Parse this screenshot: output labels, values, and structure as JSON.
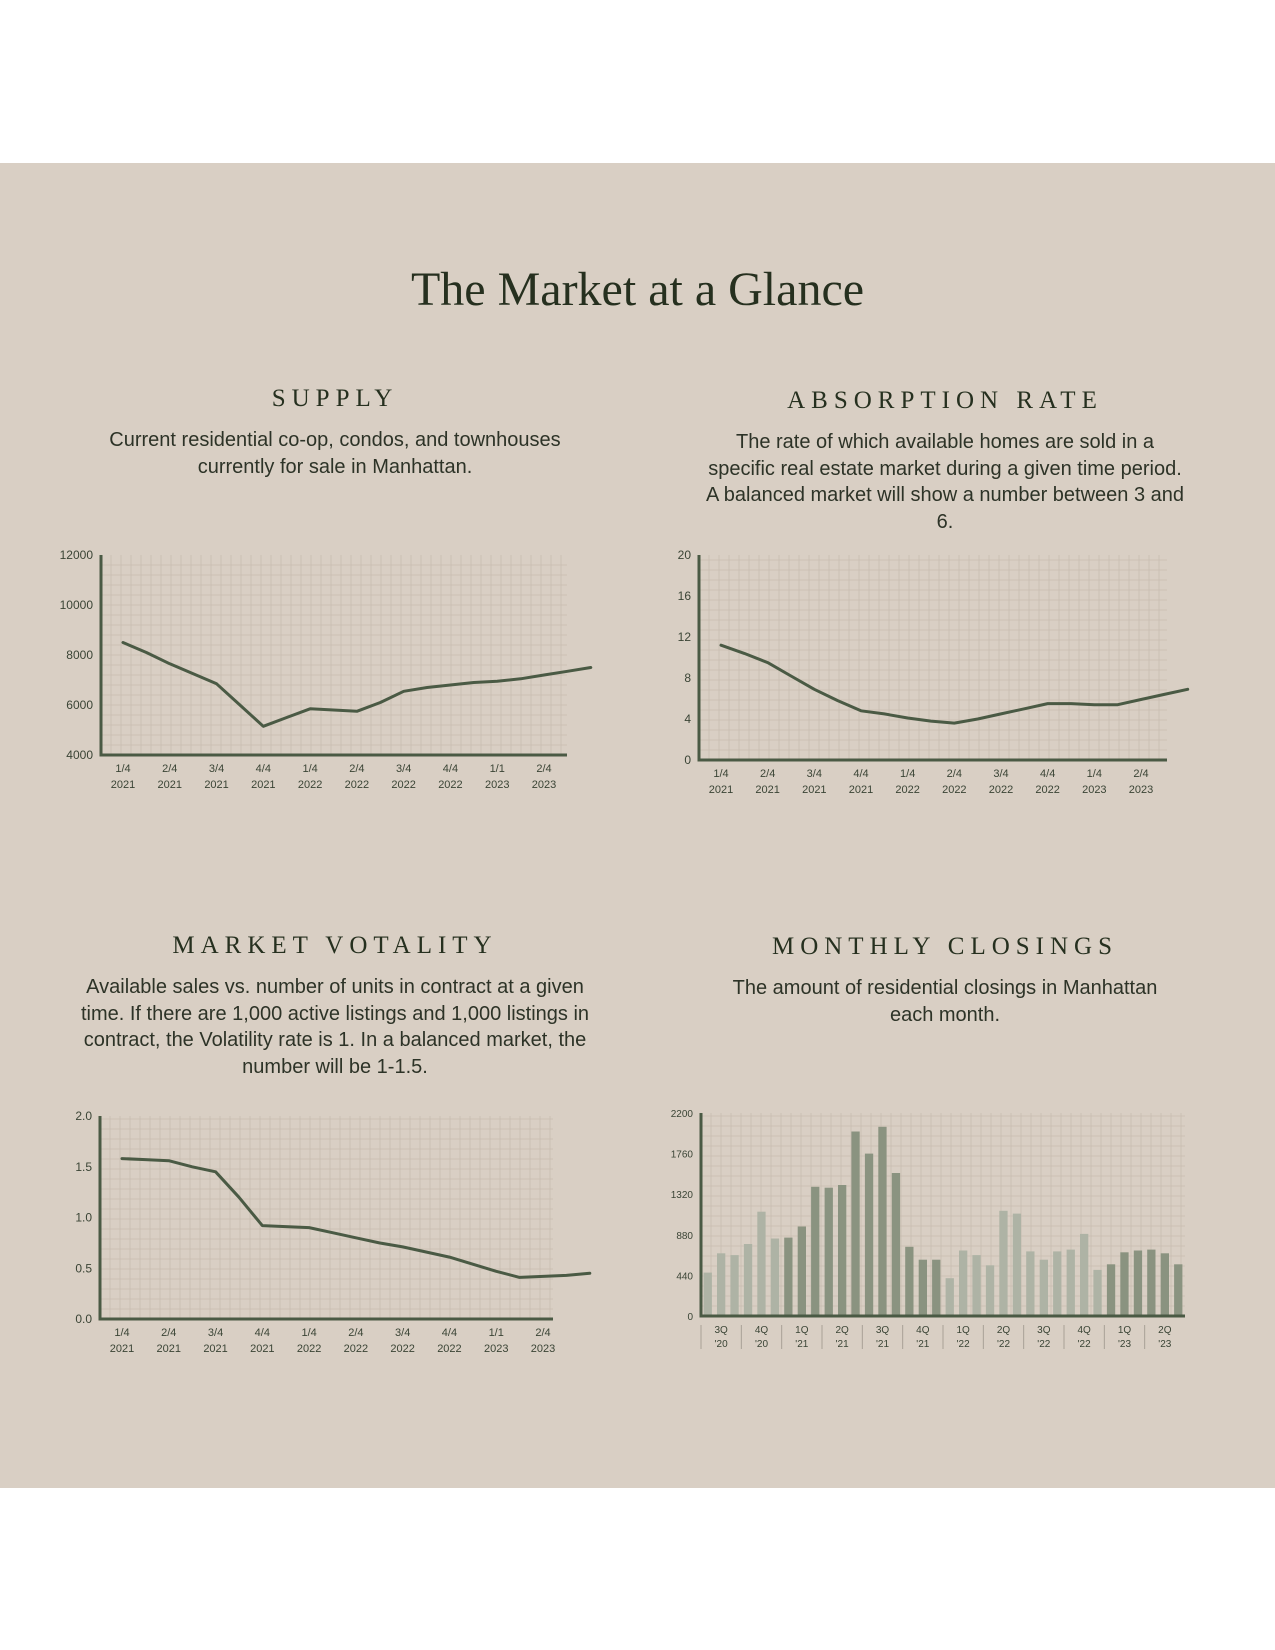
{
  "page_title": "The Market at a Glance",
  "theme": {
    "background": "#d9cfc4",
    "ink": "#26301f",
    "line_color": "#4a5a44",
    "grid_color": "#c8bdb1",
    "bar_dark": "#8a9380",
    "bar_light": "#aeb3a5"
  },
  "panels": [
    {
      "id": "supply",
      "title": "SUPPLY",
      "description": "Current residential co-op, condos, and townhouses currently for sale in Manhattan.",
      "chart_data": {
        "type": "line",
        "title": "",
        "xlabel": "",
        "ylabel": "",
        "ylim": [
          4000,
          12000
        ],
        "yticks": [
          "4000",
          "6000",
          "8000",
          "10000",
          "12000"
        ],
        "categories": [
          [
            "1/4",
            "2021"
          ],
          [
            "2/4",
            "2021"
          ],
          [
            "3/4",
            "2021"
          ],
          [
            "4/4",
            "2021"
          ],
          [
            "1/4",
            "2022"
          ],
          [
            "2/4",
            "2022"
          ],
          [
            "3/4",
            "2022"
          ],
          [
            "4/4",
            "2022"
          ],
          [
            "1/1",
            "2023"
          ],
          [
            "2/4",
            "2023"
          ]
        ],
        "x": [
          0,
          0.5,
          1,
          1.5,
          2,
          2.5,
          3,
          3.5,
          4,
          4.5,
          5,
          5.5,
          6,
          6.5,
          7,
          7.5,
          8,
          8.5,
          9,
          9.5,
          10
        ],
        "values": [
          8500,
          8100,
          7650,
          7250,
          6850,
          6000,
          5150,
          5500,
          5850,
          5800,
          5750,
          6100,
          6550,
          6700,
          6800,
          6900,
          6950,
          7050,
          7200,
          7350,
          7500
        ],
        "grid": true,
        "legend": "none"
      }
    },
    {
      "id": "absorption",
      "title": "ABSORPTION RATE",
      "description": "The rate of which available homes are sold in a specific real estate market during a given time period. A balanced market will show a number between 3 and 6.",
      "chart_data": {
        "type": "line",
        "title": "",
        "xlabel": "",
        "ylabel": "",
        "ylim": [
          0,
          20
        ],
        "yticks": [
          "0",
          "4",
          "8",
          "12",
          "16",
          "20"
        ],
        "categories": [
          [
            "1/4",
            "2021"
          ],
          [
            "2/4",
            "2021"
          ],
          [
            "3/4",
            "2021"
          ],
          [
            "4/4",
            "2021"
          ],
          [
            "1/4",
            "2022"
          ],
          [
            "2/4",
            "2022"
          ],
          [
            "3/4",
            "2022"
          ],
          [
            "4/4",
            "2022"
          ],
          [
            "1/4",
            "2023"
          ],
          [
            "2/4",
            "2023"
          ]
        ],
        "x": [
          0,
          0.5,
          1,
          1.5,
          2,
          2.5,
          3,
          3.5,
          4,
          4.5,
          5,
          5.5,
          6,
          6.5,
          7,
          7.5,
          8,
          8.5,
          9,
          9.5,
          10
        ],
        "values": [
          11.2,
          10.4,
          9.5,
          8.2,
          6.9,
          5.8,
          4.8,
          4.5,
          4.1,
          3.8,
          3.6,
          4.0,
          4.5,
          5.0,
          5.5,
          5.5,
          5.4,
          5.4,
          5.9,
          6.4,
          6.9
        ],
        "grid": true,
        "legend": "none"
      }
    },
    {
      "id": "volatility",
      "title": "MARKET VOTALITY",
      "description": "Available sales vs. number of units in contract at a given time. If there are 1,000 active listings and 1,000 listings in contract, the Volatility rate is 1. In a balanced market, the number will be 1-1.5.",
      "chart_data": {
        "type": "line",
        "title": "",
        "xlabel": "",
        "ylabel": "",
        "ylim": [
          0,
          2
        ],
        "yticks": [
          "0.0",
          "0.5",
          "1.0",
          "1.5",
          "2.0"
        ],
        "categories": [
          [
            "1/4",
            "2021"
          ],
          [
            "2/4",
            "2021"
          ],
          [
            "3/4",
            "2021"
          ],
          [
            "4/4",
            "2021"
          ],
          [
            "1/4",
            "2022"
          ],
          [
            "2/4",
            "2022"
          ],
          [
            "3/4",
            "2022"
          ],
          [
            "4/4",
            "2022"
          ],
          [
            "1/1",
            "2023"
          ],
          [
            "2/4",
            "2023"
          ]
        ],
        "x": [
          0,
          0.5,
          1,
          1.5,
          2,
          2.5,
          3,
          3.5,
          4,
          4.5,
          5,
          5.5,
          6,
          6.5,
          7,
          7.5,
          8,
          8.5,
          9,
          9.5,
          10
        ],
        "values": [
          1.58,
          1.57,
          1.56,
          1.5,
          1.45,
          1.2,
          0.92,
          0.91,
          0.9,
          0.85,
          0.8,
          0.75,
          0.71,
          0.66,
          0.61,
          0.54,
          0.47,
          0.41,
          0.42,
          0.43,
          0.45
        ],
        "grid": true,
        "legend": "none"
      }
    },
    {
      "id": "closings",
      "title": "MONTHLY CLOSINGS",
      "description": "The amount of residential closings in Manhattan each month.",
      "chart_data": {
        "type": "bar",
        "title": "",
        "xlabel": "",
        "ylabel": "",
        "ylim": [
          0,
          2200
        ],
        "yticks": [
          "0",
          "440",
          "880",
          "1320",
          "1760",
          "2200"
        ],
        "quarter_labels": [
          [
            "3Q",
            "'20"
          ],
          [
            "4Q",
            "'20"
          ],
          [
            "1Q",
            "'21"
          ],
          [
            "2Q",
            "'21"
          ],
          [
            "3Q",
            "'21"
          ],
          [
            "4Q",
            "'21"
          ],
          [
            "1Q",
            "'22"
          ],
          [
            "2Q",
            "'22"
          ],
          [
            "3Q",
            "'22"
          ],
          [
            "4Q",
            "'22"
          ],
          [
            "1Q",
            "'23"
          ],
          [
            "2Q",
            "'23"
          ]
        ],
        "values": [
          470,
          680,
          660,
          780,
          1130,
          840,
          850,
          970,
          1400,
          1390,
          1420,
          2000,
          1760,
          2050,
          1550,
          750,
          610,
          610,
          410,
          710,
          660,
          550,
          1140,
          1110,
          700,
          610,
          700,
          720,
          890,
          500,
          560,
          690,
          710,
          720,
          680,
          560
        ],
        "bar_shade": [
          "light",
          "light",
          "light",
          "light",
          "light",
          "light",
          "dark",
          "dark",
          "dark",
          "dark",
          "dark",
          "dark",
          "dark",
          "dark",
          "dark",
          "dark",
          "dark",
          "dark",
          "light",
          "light",
          "light",
          "light",
          "light",
          "light",
          "light",
          "light",
          "light",
          "light",
          "light",
          "light",
          "dark",
          "dark",
          "dark",
          "dark",
          "dark",
          "dark"
        ],
        "grid": true,
        "legend": "none"
      }
    }
  ]
}
